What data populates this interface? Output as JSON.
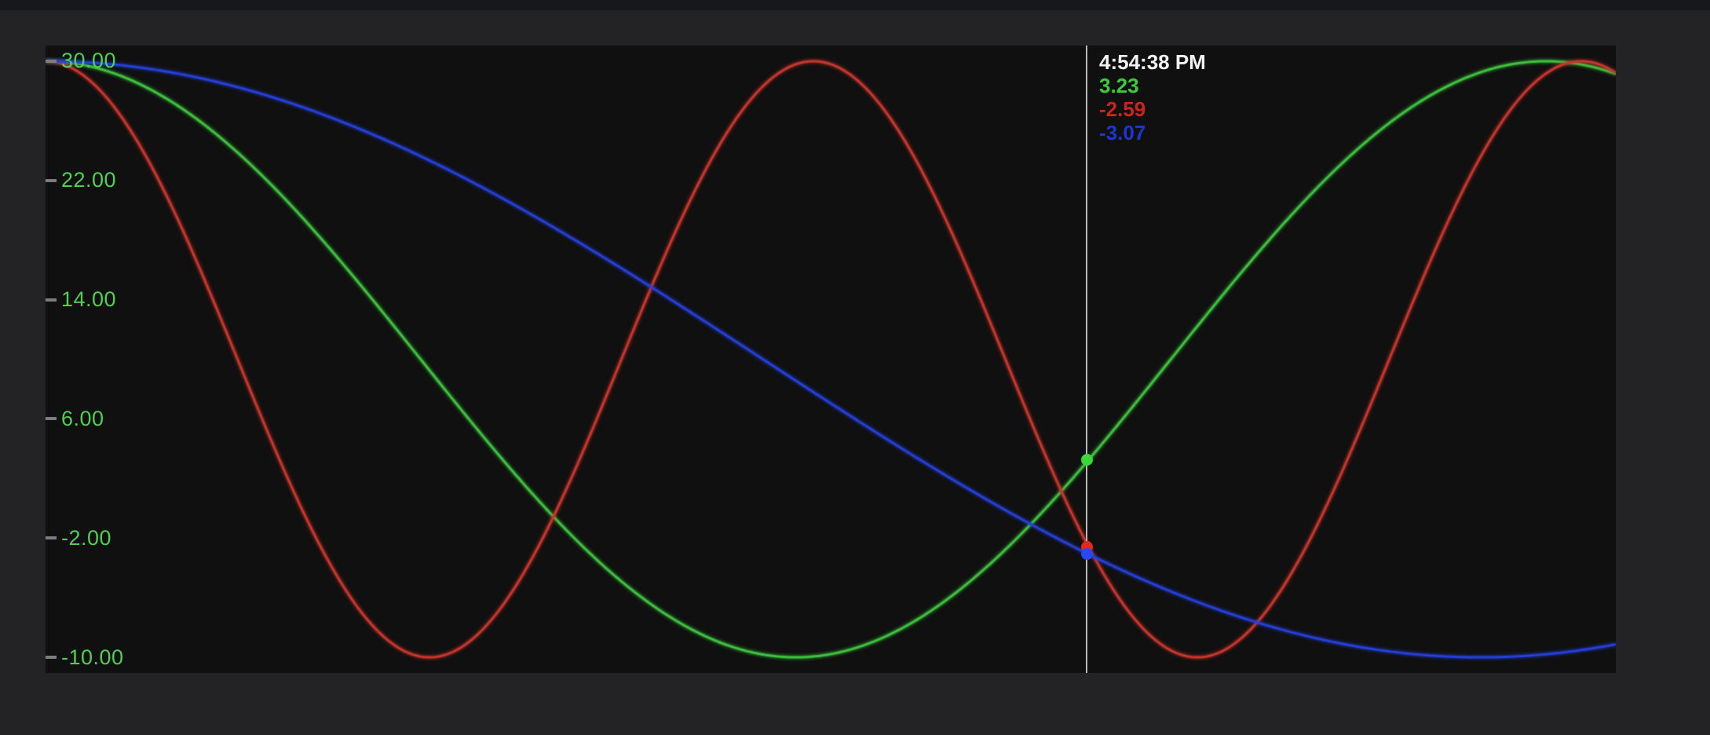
{
  "page": {
    "background_color": "#232325",
    "top_bar_color": "#17181c",
    "chart_background_color": "#101010"
  },
  "chart_data": {
    "type": "line",
    "title": "",
    "legend_visible": false,
    "grid": "off",
    "x_axis": {
      "tick_labels": []
    },
    "y_axis": {
      "tick_labels": [
        "30.00",
        "22.00",
        "14.00",
        "6.00",
        "-2.00",
        "-10.00"
      ],
      "tick_values": [
        30,
        22,
        14,
        6,
        -2,
        -10
      ],
      "range": [
        -11.05,
        31.05
      ],
      "label_color": "#50d050",
      "tick_mark_color": "#7d7d7d"
    },
    "series": [
      {
        "name": "green-series",
        "color": "#3ec13e",
        "dot_color": "#38d838",
        "model": {
          "shape": "cosine",
          "center": 10,
          "amplitude": 20,
          "period_frac": 0.9555,
          "phase": "max-at-left-edge"
        },
        "cursor_value": 3.23
      },
      {
        "name": "red-series",
        "color": "#c8362d",
        "dot_color": "#e5271c",
        "model": {
          "shape": "cosine",
          "center": 10,
          "amplitude": 20,
          "period_frac": 0.489,
          "phase": "max-at-left-edge"
        },
        "cursor_value": -2.59
      },
      {
        "name": "blue-series",
        "color": "#2540d8",
        "dot_color": "#2a49f5",
        "model": {
          "shape": "cosine",
          "center": 10,
          "amplitude": 20,
          "period_frac": 1.8275,
          "phase": "max-at-left-edge"
        },
        "cursor_value": -3.07
      }
    ],
    "cursor": {
      "x_frac": 0.663,
      "line_color": "#b9b9b9",
      "time_label": "4:54:38 PM",
      "time_color": "#f2f2f2",
      "values": [
        {
          "text": "3.23",
          "color": "#3acc3a"
        },
        {
          "text": "-2.59",
          "color": "#cc241d"
        },
        {
          "text": "-3.07",
          "color": "#1a36d8"
        }
      ]
    }
  }
}
